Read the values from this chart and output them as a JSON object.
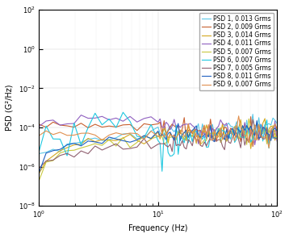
{
  "title": "",
  "xlabel": "Frequency (Hz)",
  "ylabel": "PSD (G²/Hz)",
  "xlim": [
    1.0,
    100.0
  ],
  "ylim": [
    1e-08,
    100.0
  ],
  "legend_labels": [
    "PSD 1, 0.013 Grms",
    "PSD 2, 0.009 Grms",
    "PSD 3, 0.014 Grms",
    "PSD 4, 0.011 Grms",
    "PSD 5, 0.007 Grms",
    "PSD 6, 0.007 Grms",
    "PSD 7, 0.005 Grms",
    "PSD 8, 0.011 Grms",
    "PSD 9, 0.007 Grms"
  ],
  "colors": [
    "#5BC8E8",
    "#C86030",
    "#D4A820",
    "#9060C0",
    "#C8C840",
    "#20C8E0",
    "#906070",
    "#2060C0",
    "#E09050"
  ],
  "background_color": "#ffffff",
  "legend_fontsize": 5.5,
  "axis_fontsize": 7,
  "linewidth": 0.8
}
